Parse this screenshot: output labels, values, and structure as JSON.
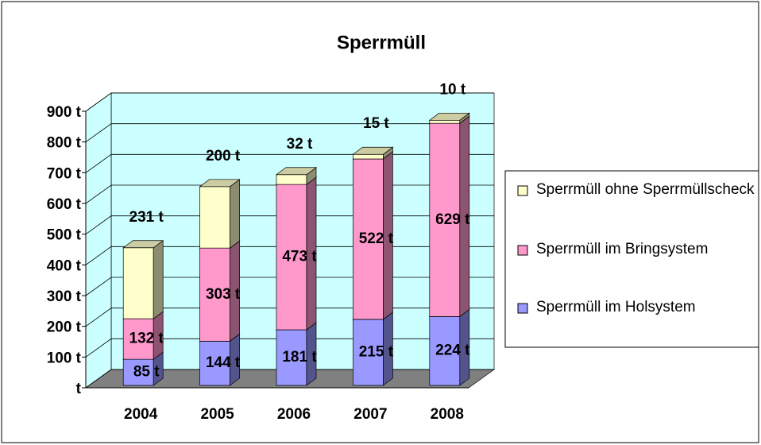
{
  "chart_data": {
    "type": "bar3d_stacked",
    "title": "Sperrmüll",
    "categories": [
      "2004",
      "2005",
      "2006",
      "2007",
      "2008"
    ],
    "series": [
      {
        "name": "Sperrmüll im Holsystem",
        "color": "#9999ff",
        "values": [
          85,
          144,
          181,
          215,
          224
        ],
        "value_labels": [
          "85 t",
          "144 t",
          "181 t",
          "215 t",
          "224 t"
        ]
      },
      {
        "name": "Sperrmüll im Bringsystem",
        "color": "#ff99cc",
        "values": [
          132,
          303,
          473,
          522,
          629
        ],
        "value_labels": [
          "132 t",
          "303 t",
          "473 t",
          "522 t",
          "629 t"
        ]
      },
      {
        "name": "Sperrmüll ohne Sperrmüllscheck",
        "color": "#ffffcc",
        "values": [
          231,
          200,
          32,
          15,
          10
        ],
        "value_labels": [
          "231 t",
          "200 t",
          "32 t",
          "15 t",
          "10 t"
        ]
      }
    ],
    "ylim": [
      0,
      900
    ],
    "yticks": [
      {
        "value": 0,
        "label": "t"
      },
      {
        "value": 100,
        "label": "100 t"
      },
      {
        "value": 200,
        "label": "200 t"
      },
      {
        "value": 300,
        "label": "300 t"
      },
      {
        "value": 400,
        "label": "400 t"
      },
      {
        "value": 500,
        "label": "500 t"
      },
      {
        "value": 600,
        "label": "600 t"
      },
      {
        "value": 700,
        "label": "700 t"
      },
      {
        "value": 800,
        "label": "800 t"
      },
      {
        "value": 900,
        "label": "900 t"
      }
    ],
    "grid": true,
    "stacked": true,
    "legend": "right"
  }
}
